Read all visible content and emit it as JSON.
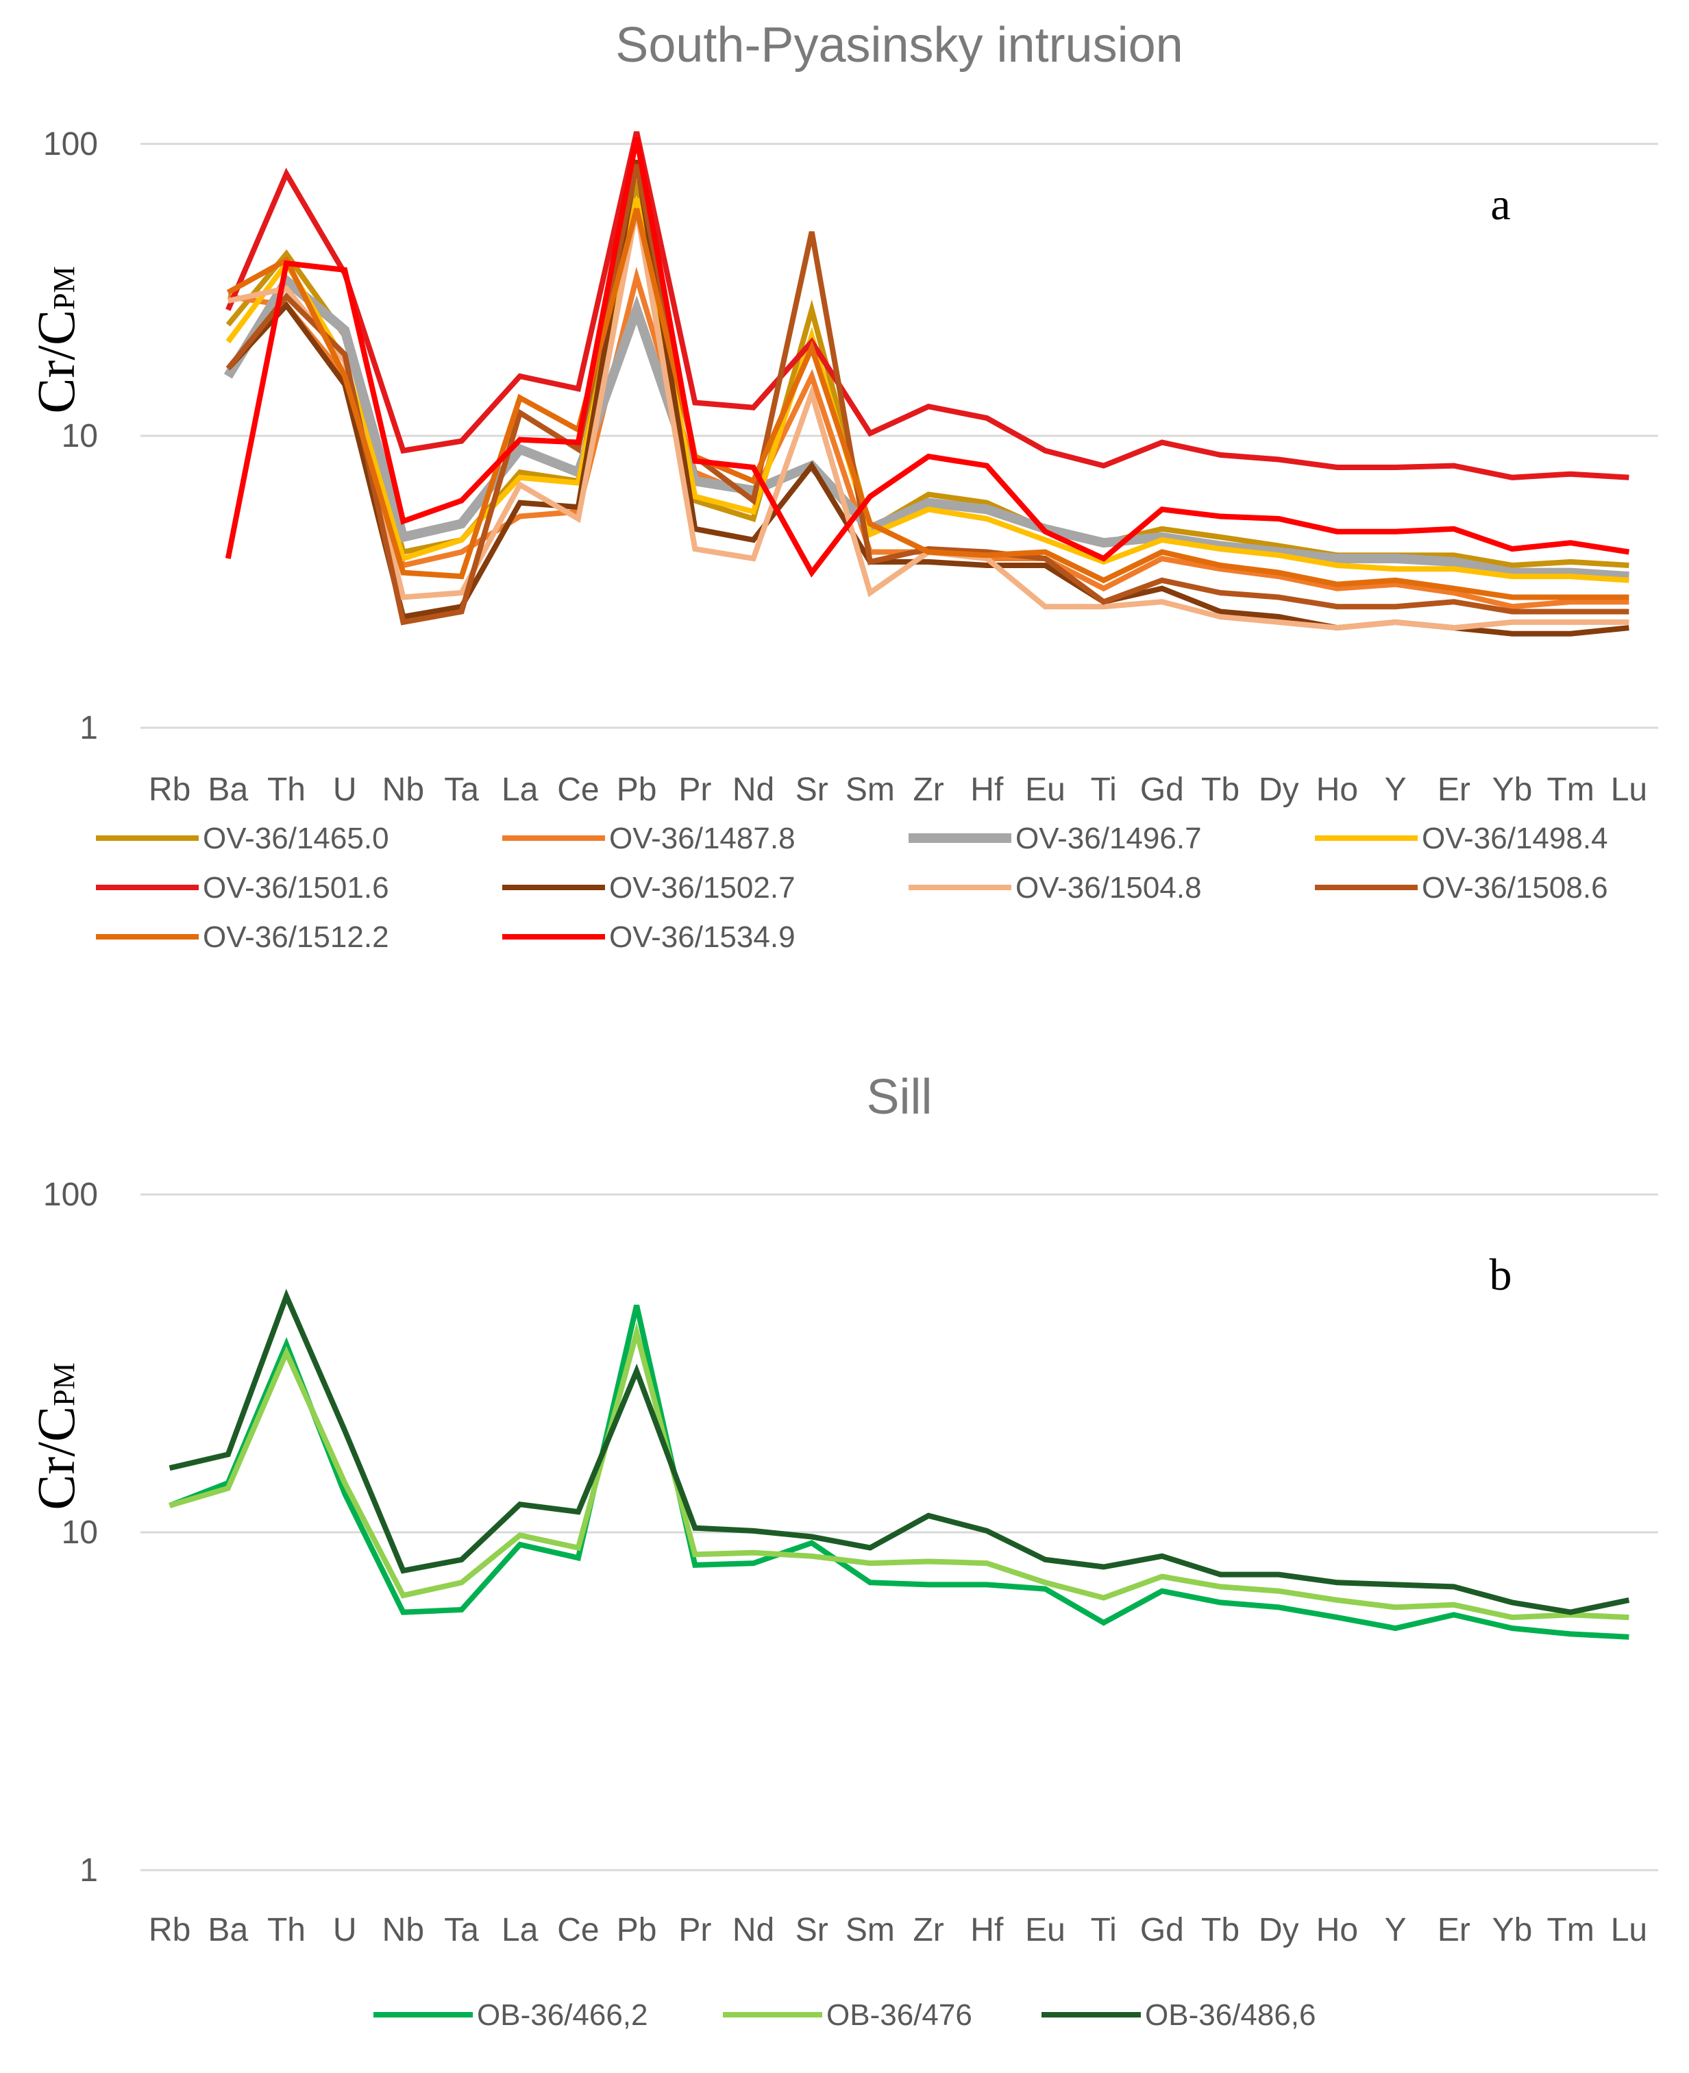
{
  "chart_data": [
    {
      "type": "line",
      "title": "South-Pyasinsky intrusion",
      "ylabel_main": "Cr/C",
      "ylabel_sub": "PM",
      "panel_label": "a",
      "yscale": "log",
      "ylim": [
        1,
        100
      ],
      "yticks": [
        "1",
        "10",
        "100"
      ],
      "grid": "horizontal",
      "legend_position": "bottom",
      "categories": [
        "Rb",
        "Ba",
        "Th",
        "U",
        "Nb",
        "Ta",
        "La",
        "Ce",
        "Pb",
        "Pr",
        "Nd",
        "Sr",
        "Sm",
        "Zr",
        "Hf",
        "Eu",
        "Ti",
        "Gd",
        "Tb",
        "Dy",
        "Ho",
        "Y",
        "Er",
        "Yb",
        "Tm",
        "Lu"
      ],
      "series": [
        {
          "name": "OV-36/1465.0",
          "color": "#c8930a",
          "values": [
            null,
            24,
            42,
            22,
            4.0,
            4.4,
            7.5,
            7.0,
            75,
            6.0,
            5.2,
            27,
            4.8,
            6.3,
            5.9,
            4.8,
            4.3,
            4.8,
            4.5,
            4.2,
            3.9,
            3.9,
            3.9,
            3.6,
            3.7,
            3.6
          ]
        },
        {
          "name": "OV-36/1487.8",
          "color": "#f07c2a",
          "values": [
            null,
            30,
            28,
            16,
            3.6,
            4.0,
            5.3,
            5.5,
            35,
            7.5,
            6.2,
            16,
            4.0,
            4.0,
            3.8,
            3.8,
            3.0,
            3.8,
            3.5,
            3.3,
            3.0,
            3.1,
            2.9,
            2.6,
            2.7,
            2.7
          ]
        },
        {
          "name": "OV-36/1496.7",
          "color": "#a6a6a6",
          "values": [
            null,
            16,
            34,
            23,
            4.5,
            5.0,
            9.0,
            7.5,
            27,
            7.0,
            6.5,
            7.9,
            4.8,
            5.9,
            5.6,
            4.8,
            4.3,
            4.5,
            4.2,
            4.0,
            3.8,
            3.8,
            3.7,
            3.4,
            3.4,
            3.3
          ]
        },
        {
          "name": "OV-36/1498.4",
          "color": "#ffc000",
          "values": [
            null,
            21,
            39,
            18,
            3.8,
            4.4,
            7.2,
            6.9,
            65,
            6.2,
            5.5,
            22,
            4.6,
            5.6,
            5.2,
            4.4,
            3.7,
            4.4,
            4.1,
            3.9,
            3.6,
            3.5,
            3.5,
            3.3,
            3.3,
            3.2
          ]
        },
        {
          "name": "OV-36/1501.6",
          "color": "#e31a1c",
          "values": [
            null,
            27,
            79,
            36,
            8.9,
            9.6,
            16,
            14.5,
            110,
            13,
            12.5,
            21,
            10.2,
            12.6,
            11.5,
            8.9,
            7.9,
            9.5,
            8.6,
            8.3,
            7.8,
            7.8,
            7.9,
            7.2,
            7.4,
            7.2
          ]
        },
        {
          "name": "OV-36/1502.7",
          "color": "#843c0c",
          "values": [
            null,
            17,
            28,
            15,
            2.4,
            2.6,
            5.9,
            5.7,
            88,
            4.8,
            4.4,
            7.9,
            3.7,
            3.7,
            3.6,
            3.6,
            2.7,
            3.0,
            2.5,
            2.4,
            2.2,
            2.3,
            2.2,
            2.1,
            2.1,
            2.2
          ]
        },
        {
          "name": "OV-36/1504.8",
          "color": "#f4b183",
          "values": [
            null,
            29,
            32,
            18,
            2.8,
            2.9,
            6.8,
            5.2,
            60,
            4.1,
            3.8,
            14,
            2.9,
            4.0,
            3.8,
            2.6,
            2.6,
            2.7,
            2.4,
            2.3,
            2.2,
            2.3,
            2.2,
            2.3,
            2.3,
            2.3
          ]
        },
        {
          "name": "OV-36/1508.6",
          "color": "#b4541a",
          "values": [
            null,
            17,
            30,
            19,
            2.3,
            2.5,
            12,
            9.0,
            85,
            8.5,
            6.0,
            50,
            3.7,
            4.1,
            4.0,
            3.8,
            2.7,
            3.2,
            2.9,
            2.8,
            2.6,
            2.6,
            2.7,
            2.5,
            2.5,
            2.5
          ]
        },
        {
          "name": "OV-36/1512.2",
          "color": "#e36c0a",
          "values": [
            null,
            31,
            40,
            16,
            3.4,
            3.3,
            13.5,
            10.5,
            60,
            8.5,
            7.0,
            20,
            5.0,
            4.0,
            3.9,
            4.0,
            3.2,
            4.0,
            3.6,
            3.4,
            3.1,
            3.2,
            3.0,
            2.8,
            2.8,
            2.8
          ]
        },
        {
          "name": "OV-36/1534.9",
          "color": "#ff0000",
          "values": [
            null,
            3.8,
            39,
            37,
            5.1,
            6.0,
            9.7,
            9.5,
            105,
            8.2,
            7.8,
            3.4,
            6.2,
            8.5,
            7.9,
            4.7,
            3.8,
            5.6,
            5.3,
            5.2,
            4.7,
            4.7,
            4.8,
            4.1,
            4.3,
            4.0
          ]
        }
      ]
    },
    {
      "type": "line",
      "title": "Sill",
      "ylabel_main": "Cr/C",
      "ylabel_sub": "PM",
      "panel_label": "b",
      "yscale": "log",
      "ylim": [
        1,
        100
      ],
      "yticks": [
        "1",
        "10",
        "100"
      ],
      "grid": "horizontal",
      "legend_position": "bottom",
      "categories": [
        "Rb",
        "Ba",
        "Th",
        "U",
        "Nb",
        "Ta",
        "La",
        "Ce",
        "Pb",
        "Pr",
        "Nd",
        "Sr",
        "Sm",
        "Zr",
        "Hf",
        "Eu",
        "Ti",
        "Gd",
        "Tb",
        "Dy",
        "Ho",
        "Y",
        "Er",
        "Yb",
        "Tm",
        "Lu"
      ],
      "series": [
        {
          "name": "OB-36/466,2",
          "color": "#00b050",
          "values": [
            12,
            14,
            36,
            13,
            5.8,
            5.9,
            9.2,
            8.4,
            47,
            8.0,
            8.1,
            9.3,
            7.1,
            7.0,
            7.0,
            6.8,
            5.4,
            6.7,
            6.2,
            6.0,
            5.6,
            5.2,
            5.7,
            5.2,
            5.0,
            4.9
          ]
        },
        {
          "name": "OB-36/476",
          "color": "#92d050",
          "values": [
            12,
            13.5,
            34,
            14,
            6.5,
            7.1,
            9.8,
            9.0,
            39,
            8.6,
            8.7,
            8.5,
            8.1,
            8.2,
            8.1,
            7.1,
            6.4,
            7.4,
            6.9,
            6.7,
            6.3,
            6.0,
            6.1,
            5.6,
            5.7,
            5.6
          ]
        },
        {
          "name": "OB-36/486,6",
          "color": "#1d5b26",
          "values": [
            15.5,
            17,
            50,
            20,
            7.7,
            8.3,
            12.1,
            11.5,
            30,
            10.3,
            10.1,
            9.7,
            9.0,
            11.2,
            10.1,
            8.3,
            7.9,
            8.5,
            7.5,
            7.5,
            7.1,
            7.0,
            6.9,
            6.2,
            5.8,
            6.3
          ]
        }
      ]
    }
  ]
}
